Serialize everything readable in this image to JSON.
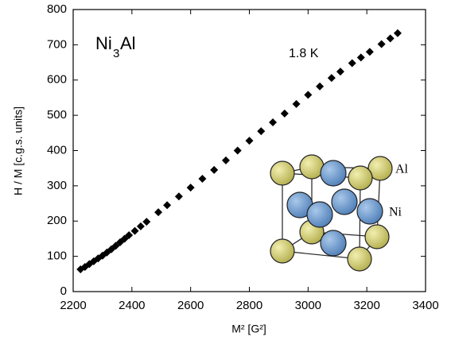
{
  "chart_data": {
    "type": "scatter",
    "title_parts": {
      "base": "Ni",
      "subscript": "3",
      "rest": "Al"
    },
    "annotation": "1.8 K",
    "xlabel": "M² [G²]",
    "ylabel": "H / M [c.g.s. units]",
    "inset_labels": [
      "Al",
      "Ni"
    ],
    "color": "#000000",
    "x": [
      2225,
      2240,
      2255,
      2270,
      2285,
      2300,
      2315,
      2330,
      2345,
      2360,
      2375,
      2390,
      2410,
      2430,
      2450,
      2490,
      2520,
      2560,
      2600,
      2640,
      2680,
      2720,
      2760,
      2800,
      2840,
      2880,
      2920,
      2960,
      3000,
      3040,
      3080,
      3110,
      3150,
      3180,
      3210,
      3250,
      3280,
      3305
    ],
    "values": [
      63,
      70,
      78,
      86,
      94,
      102,
      111,
      120,
      130,
      140,
      150,
      160,
      172,
      185,
      198,
      225,
      245,
      270,
      295,
      320,
      345,
      372,
      400,
      428,
      455,
      480,
      505,
      532,
      558,
      582,
      606,
      624,
      648,
      664,
      680,
      702,
      718,
      733
    ],
    "xlim": [
      2200,
      3400
    ],
    "xticks": [
      2200,
      2400,
      2600,
      2800,
      3000,
      3200,
      3400
    ],
    "ylim": [
      0,
      800
    ],
    "yticks": [
      0,
      100,
      200,
      300,
      400,
      500,
      600,
      700,
      800
    ]
  }
}
